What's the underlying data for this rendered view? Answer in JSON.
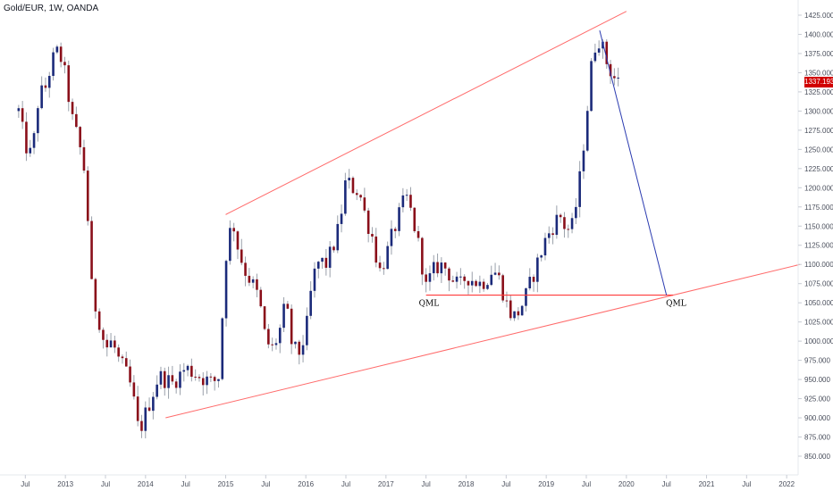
{
  "header": {
    "title": "Gold/EUR, 1W, OANDA"
  },
  "last_price_label": "1337.193",
  "colors": {
    "up": "#1b2a7a",
    "down": "#8a0f1a",
    "wick": "#9aa0aa",
    "trend": "#ff6b6b",
    "projection": "#2b3bb0",
    "price_tag": "#d10000"
  },
  "chart_data": {
    "type": "candlestick",
    "title": "Gold/EUR, 1W, OANDA",
    "xlabel": "",
    "ylabel": "",
    "ylim": [
      835,
      1440
    ],
    "y_ticks": [
      "1425.000",
      "1400.000",
      "1375.000",
      "1350.000",
      "1325.000",
      "1300.000",
      "1275.000",
      "1250.000",
      "1225.000",
      "1200.000",
      "1175.000",
      "1150.000",
      "1125.000",
      "1100.000",
      "1075.000",
      "1050.000",
      "1025.000",
      "1000.000",
      "975.000",
      "950.000",
      "925.000",
      "900.000",
      "875.000",
      "850.000"
    ],
    "x_ticks": [
      "Jul",
      "2013",
      "Jul",
      "2014",
      "Jul",
      "2015",
      "Jul",
      "2016",
      "Jul",
      "2017",
      "Jul",
      "2018",
      "Jul",
      "2019",
      "Jul",
      "2020",
      "Jul",
      "2021",
      "Jul",
      "2022"
    ],
    "price_path": [
      [
        "2012-06",
        1300
      ],
      [
        "2012-07",
        1255
      ],
      [
        "2012-08",
        1240
      ],
      [
        "2012-09",
        1320
      ],
      [
        "2012-10",
        1330
      ],
      [
        "2012-11",
        1365
      ],
      [
        "2012-12",
        1380
      ],
      [
        "2013-01",
        1345
      ],
      [
        "2013-02",
        1290
      ],
      [
        "2013-03",
        1260
      ],
      [
        "2013-04",
        1215
      ],
      [
        "2013-05",
        1060
      ],
      [
        "2013-06",
        1030
      ],
      [
        "2013-07",
        990
      ],
      [
        "2013-08",
        1000
      ],
      [
        "2013-09",
        975
      ],
      [
        "2013-10",
        960
      ],
      [
        "2013-11",
        935
      ],
      [
        "2013-12",
        880
      ],
      [
        "2014-01",
        905
      ],
      [
        "2014-03",
        955
      ],
      [
        "2014-05",
        945
      ],
      [
        "2014-07",
        965
      ],
      [
        "2014-09",
        955
      ],
      [
        "2014-11",
        945
      ],
      [
        "2014-12",
        955
      ],
      [
        "2015-01",
        1110
      ],
      [
        "2015-02",
        1160
      ],
      [
        "2015-03",
        1115
      ],
      [
        "2015-04",
        1090
      ],
      [
        "2015-05",
        1075
      ],
      [
        "2015-06",
        1055
      ],
      [
        "2015-07",
        1000
      ],
      [
        "2015-08",
        990
      ],
      [
        "2015-09",
        1010
      ],
      [
        "2015-10",
        1050
      ],
      [
        "2015-11",
        990
      ],
      [
        "2015-12",
        985
      ],
      [
        "2016-01",
        1010
      ],
      [
        "2016-02",
        1080
      ],
      [
        "2016-03",
        1105
      ],
      [
        "2016-04",
        1100
      ],
      [
        "2016-05",
        1120
      ],
      [
        "2016-06",
        1150
      ],
      [
        "2016-07",
        1210
      ],
      [
        "2016-08",
        1200
      ],
      [
        "2016-09",
        1195
      ],
      [
        "2016-10",
        1160
      ],
      [
        "2016-11",
        1135
      ],
      [
        "2016-12",
        1090
      ],
      [
        "2017-01",
        1110
      ],
      [
        "2017-02",
        1140
      ],
      [
        "2017-03",
        1165
      ],
      [
        "2017-04",
        1190
      ],
      [
        "2017-05",
        1160
      ],
      [
        "2017-06",
        1120
      ],
      [
        "2017-07",
        1070
      ],
      [
        "2017-08",
        1090
      ],
      [
        "2017-09",
        1100
      ],
      [
        "2017-10",
        1095
      ],
      [
        "2017-11",
        1080
      ],
      [
        "2017-12",
        1070
      ],
      [
        "2018-01",
        1085
      ],
      [
        "2018-02",
        1080
      ],
      [
        "2018-03",
        1075
      ],
      [
        "2018-04",
        1080
      ],
      [
        "2018-05",
        1095
      ],
      [
        "2018-06",
        1080
      ],
      [
        "2018-07",
        1050
      ],
      [
        "2018-08",
        1030
      ],
      [
        "2018-09",
        1040
      ],
      [
        "2018-10",
        1060
      ],
      [
        "2018-11",
        1085
      ],
      [
        "2018-12",
        1110
      ],
      [
        "2019-01",
        1135
      ],
      [
        "2019-02",
        1150
      ],
      [
        "2019-03",
        1165
      ],
      [
        "2019-04",
        1145
      ],
      [
        "2019-05",
        1150
      ],
      [
        "2019-06",
        1210
      ],
      [
        "2019-07",
        1290
      ],
      [
        "2019-08",
        1380
      ],
      [
        "2019-09",
        1395
      ],
      [
        "2019-10",
        1365
      ],
      [
        "2019-11",
        1345
      ],
      [
        "2019-12",
        1337
      ]
    ],
    "annotations": {
      "upper_trend": [
        [
          "2015-01",
          1165
        ],
        [
          "2020-01",
          1430
        ]
      ],
      "lower_trend": [
        [
          "2014-04",
          900
        ],
        [
          "2022-03",
          1100
        ]
      ],
      "neckline": {
        "y": 1060,
        "from": "2017-07",
        "to": "2020-08",
        "left_label": "QML",
        "right_label": "QML"
      },
      "projection": [
        [
          "2019-09",
          1405
        ],
        [
          "2020-07",
          1060
        ]
      ]
    }
  }
}
